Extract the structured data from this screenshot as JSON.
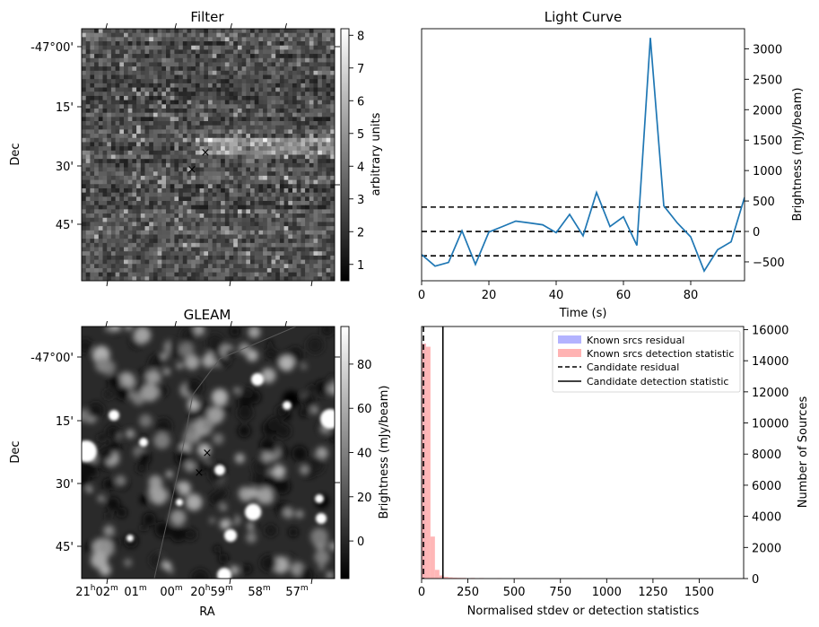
{
  "chart_data": [
    {
      "panel": "filter",
      "type": "heatmap",
      "title": "Filter",
      "ylabel": "Dec",
      "colorbar_label": "arbitrary units",
      "colorbar_ticks": [
        "1",
        "2",
        "3",
        "4",
        "5",
        "6",
        "7",
        "8"
      ],
      "colorbar_range": [
        0.5,
        8.2
      ],
      "dec_tick_labels": [
        "-47°00'",
        "15'",
        "30'",
        "45'"
      ],
      "markers": [
        {
          "symbol": "×",
          "color": "#ff0000",
          "name": "candidate-position"
        },
        {
          "symbol": "×",
          "color": "#0000ff",
          "name": "gleam-position"
        }
      ]
    },
    {
      "panel": "light_curve",
      "type": "line",
      "title": "Light Curve",
      "xlabel": "Time (s)",
      "ylabel": "Brightness (mJy/beam)",
      "xlim": [
        0,
        96
      ],
      "ylim": [
        -810,
        3330
      ],
      "x_ticks": [
        0,
        20,
        40,
        60,
        80
      ],
      "y_ticks": [
        -500,
        0,
        500,
        1000,
        1500,
        2000,
        2500,
        3000
      ],
      "line_color": "#1f77b4",
      "series": [
        {
          "x": [
            0,
            4,
            8,
            12,
            16,
            20,
            24,
            28,
            32,
            36,
            40,
            44,
            48,
            52,
            56,
            60,
            64,
            68,
            72,
            76,
            80,
            84,
            88,
            92,
            96
          ],
          "y": [
            -380,
            -570,
            -510,
            10,
            -540,
            -10,
            80,
            170,
            140,
            110,
            -20,
            280,
            -70,
            640,
            80,
            240,
            -230,
            3180,
            420,
            140,
            -90,
            -650,
            -300,
            -170,
            560
          ]
        }
      ],
      "hlines": [
        {
          "y": 400,
          "style": "dashed"
        },
        {
          "y": 0,
          "style": "dashed"
        },
        {
          "y": -400,
          "style": "dashed"
        }
      ]
    },
    {
      "panel": "gleam",
      "type": "heatmap",
      "title": "GLEAM",
      "xlabel": "RA",
      "ylabel": "Dec",
      "colorbar_label": "Brightness (mJy/beam)",
      "colorbar_ticks": [
        "0",
        "20",
        "40",
        "60",
        "80"
      ],
      "colorbar_range": [
        -17,
        97
      ],
      "dec_tick_labels": [
        "-47°00'",
        "15'",
        "30'",
        "45'"
      ],
      "ra_tick_labels": [
        {
          "base": "21",
          "sup1": "h",
          "mid": "02",
          "sup2": "m"
        },
        {
          "base": "01",
          "sup2": "m"
        },
        {
          "base": "00",
          "sup2": "m"
        },
        {
          "base": "20",
          "sup1": "h",
          "mid": "59",
          "sup2": "m"
        },
        {
          "base": "58",
          "sup2": "m"
        },
        {
          "base": "57",
          "sup2": "m"
        }
      ],
      "markers": [
        {
          "symbol": "×",
          "color": "#ff0000",
          "name": "candidate-position"
        },
        {
          "symbol": "×",
          "color": "#0000ff",
          "name": "gleam-position"
        }
      ]
    },
    {
      "panel": "histogram",
      "type": "bar",
      "xlabel": "Normalised stdev or detection statistics",
      "ylabel": "Number of Sources",
      "xlim": [
        0,
        1740
      ],
      "ylim": [
        0,
        16200
      ],
      "x_ticks": [
        0,
        250,
        500,
        750,
        1000,
        1250,
        1500
      ],
      "y_ticks": [
        0,
        2000,
        4000,
        6000,
        8000,
        10000,
        12000,
        14000,
        16000
      ],
      "bin_width": 24,
      "series": [
        {
          "name": "Known srcs residual",
          "color": "#b3b3ff",
          "bins": [
            {
              "x0": 0,
              "count": 15100
            }
          ]
        },
        {
          "name": "Known srcs detection statistic",
          "color": "#ffb3b3",
          "bins": [
            {
              "x0": 0,
              "count": 15100
            },
            {
              "x0": 24,
              "count": 14900
            },
            {
              "x0": 48,
              "count": 2700
            },
            {
              "x0": 72,
              "count": 560
            },
            {
              "x0": 96,
              "count": 200
            },
            {
              "x0": 120,
              "count": 110
            },
            {
              "x0": 144,
              "count": 80
            },
            {
              "x0": 168,
              "count": 60
            },
            {
              "x0": 192,
              "count": 50
            },
            {
              "x0": 216,
              "count": 45
            },
            {
              "x0": 264,
              "count": 40
            },
            {
              "x0": 312,
              "count": 35
            },
            {
              "x0": 408,
              "count": 30
            },
            {
              "x0": 504,
              "count": 30
            },
            {
              "x0": 600,
              "count": 25
            },
            {
              "x0": 720,
              "count": 25
            },
            {
              "x0": 840,
              "count": 25
            },
            {
              "x0": 1032,
              "count": 20
            },
            {
              "x0": 1248,
              "count": 20
            },
            {
              "x0": 1632,
              "count": 15
            }
          ]
        }
      ],
      "vlines": [
        {
          "name": "Candidate residual",
          "x": 10,
          "style": "dashed"
        },
        {
          "name": "Candidate detection statistic",
          "x": 115,
          "style": "solid"
        }
      ]
    }
  ]
}
